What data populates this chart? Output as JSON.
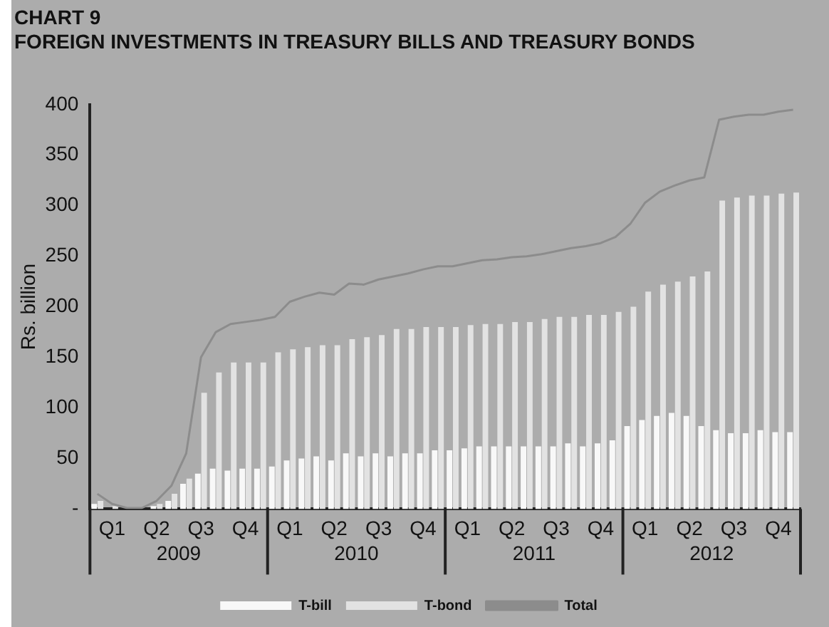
{
  "chart_data": {
    "type": "bar",
    "title": "CHART 9",
    "subtitle": "FOREIGN INVESTMENTS IN TREASURY BILLS AND TREASURY BONDS",
    "ylabel": "Rs. billion",
    "categories": [
      null,
      "Q1",
      null,
      null,
      "Q2",
      null,
      null,
      "Q3",
      null,
      null,
      "Q4",
      null,
      null,
      "Q1",
      null,
      null,
      "Q2",
      null,
      null,
      "Q3",
      null,
      null,
      "Q4",
      null,
      null,
      "Q1",
      null,
      null,
      "Q2",
      null,
      null,
      "Q3",
      null,
      null,
      "Q4",
      null,
      null,
      "Q1",
      null,
      null,
      "Q2",
      null,
      null,
      "Q3",
      null,
      null,
      "Q4",
      null
    ],
    "annotations": [
      "2009",
      "2010",
      "2011",
      "2012"
    ],
    "series": [
      {
        "name": "T-bill",
        "color": "#f8f8f8",
        "values": [
          5,
          null,
          0,
          0,
          3,
          8,
          25,
          35,
          40,
          38,
          40,
          40,
          42,
          48,
          50,
          52,
          48,
          55,
          52,
          55,
          52,
          55,
          55,
          58,
          58,
          60,
          62,
          62,
          62,
          62,
          62,
          62,
          65,
          62,
          65,
          68,
          82,
          88,
          92,
          95,
          92,
          82,
          78,
          75,
          75,
          78,
          76,
          76
        ]
      },
      {
        "name": "T-bond",
        "color": "#e2e2e2",
        "values": [
          8,
          3,
          0,
          0,
          5,
          15,
          30,
          115,
          135,
          145,
          145,
          145,
          155,
          158,
          160,
          162,
          162,
          168,
          170,
          172,
          178,
          178,
          180,
          180,
          180,
          182,
          183,
          183,
          185,
          185,
          188,
          190,
          190,
          192,
          192,
          195,
          200,
          215,
          222,
          225,
          230,
          235,
          305,
          308,
          310,
          310,
          312,
          313
        ]
      },
      {
        "name": "Total",
        "type": "line",
        "color": "#8c8c8c",
        "values": [
          15,
          5,
          1,
          1,
          8,
          23,
          55,
          150,
          175,
          183,
          185,
          187,
          190,
          205,
          210,
          214,
          212,
          223,
          222,
          227,
          230,
          233,
          237,
          240,
          240,
          243,
          246,
          247,
          249,
          250,
          252,
          255,
          258,
          260,
          263,
          269,
          282,
          303,
          314,
          320,
          325,
          328,
          385,
          388,
          390,
          390,
          393,
          395
        ]
      }
    ],
    "ylim": [
      0,
      400
    ],
    "yticks": [
      {
        "value": 0,
        "label": "-"
      },
      50,
      100,
      150,
      200,
      250,
      300,
      350,
      400
    ],
    "grid": false,
    "legend": "bottom",
    "marker": "none"
  }
}
